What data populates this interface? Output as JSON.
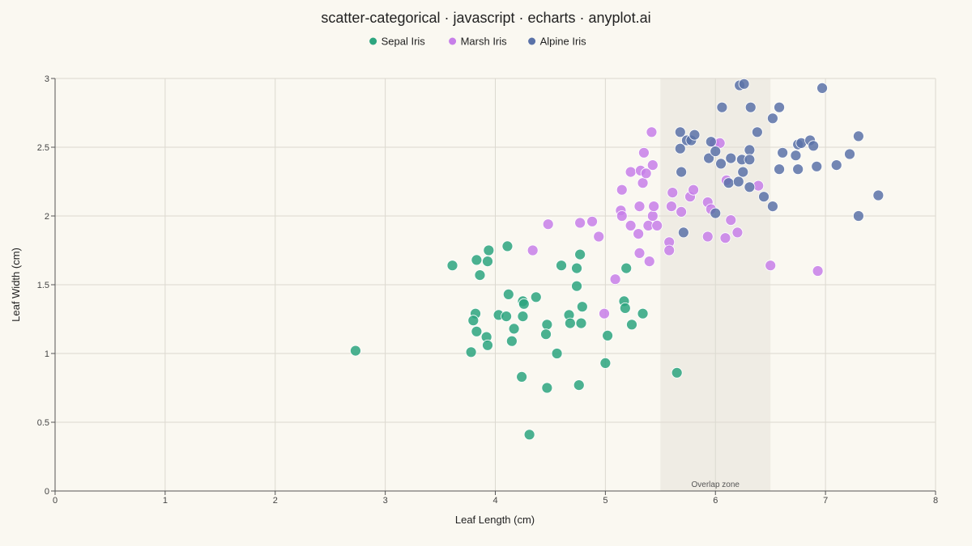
{
  "chart_data": {
    "type": "scatter",
    "title": "scatter-categorical · javascript · echarts · anyplot.ai",
    "xlabel": "Leaf Length (cm)",
    "ylabel": "Leaf Width (cm)",
    "xlim": [
      0,
      8
    ],
    "ylim": [
      0,
      3
    ],
    "xticks": [
      "0",
      "1",
      "2",
      "3",
      "4",
      "5",
      "6",
      "7",
      "8"
    ],
    "yticks": [
      "0",
      "0.5",
      "1",
      "1.5",
      "2",
      "2.5",
      "3"
    ],
    "grid": true,
    "legend_position": "top-center",
    "annotation": {
      "label": "Overlap zone",
      "x_range": [
        5.5,
        6.5
      ]
    },
    "series": [
      {
        "name": "Sepal Iris",
        "color": "#2ca57f",
        "points": [
          [
            2.73,
            1.02
          ],
          [
            3.61,
            1.64
          ],
          [
            3.83,
            1.68
          ],
          [
            3.93,
            1.67
          ],
          [
            3.94,
            1.75
          ],
          [
            4.11,
            1.78
          ],
          [
            3.86,
            1.57
          ],
          [
            4.12,
            1.43
          ],
          [
            3.82,
            1.29
          ],
          [
            3.8,
            1.24
          ],
          [
            4.03,
            1.28
          ],
          [
            4.1,
            1.27
          ],
          [
            4.25,
            1.38
          ],
          [
            4.26,
            1.36
          ],
          [
            4.25,
            1.27
          ],
          [
            4.37,
            1.41
          ],
          [
            3.83,
            1.16
          ],
          [
            3.92,
            1.12
          ],
          [
            4.17,
            1.18
          ],
          [
            3.93,
            1.06
          ],
          [
            3.78,
            1.01
          ],
          [
            4.15,
            1.09
          ],
          [
            4.47,
            1.21
          ],
          [
            4.46,
            1.14
          ],
          [
            4.56,
            1.0
          ],
          [
            4.24,
            0.83
          ],
          [
            4.47,
            0.75
          ],
          [
            4.31,
            0.41
          ],
          [
            4.6,
            1.64
          ],
          [
            4.74,
            1.62
          ],
          [
            4.77,
            1.72
          ],
          [
            4.74,
            1.49
          ],
          [
            4.79,
            1.34
          ],
          [
            4.67,
            1.28
          ],
          [
            4.68,
            1.22
          ],
          [
            4.78,
            1.22
          ],
          [
            4.76,
            0.77
          ],
          [
            5.0,
            0.93
          ],
          [
            5.02,
            1.13
          ],
          [
            5.19,
            1.62
          ],
          [
            5.17,
            1.38
          ],
          [
            5.18,
            1.33
          ],
          [
            5.24,
            1.21
          ],
          [
            5.34,
            1.29
          ],
          [
            5.65,
            0.86
          ]
        ]
      },
      {
        "name": "Marsh Iris",
        "color": "#c77fe9",
        "points": [
          [
            4.34,
            1.75
          ],
          [
            4.48,
            1.94
          ],
          [
            4.77,
            1.95
          ],
          [
            4.88,
            1.96
          ],
          [
            4.94,
            1.85
          ],
          [
            4.99,
            1.29
          ],
          [
            5.09,
            1.54
          ],
          [
            5.14,
            2.04
          ],
          [
            5.15,
            2.0
          ],
          [
            5.15,
            2.19
          ],
          [
            5.23,
            1.93
          ],
          [
            5.23,
            2.32
          ],
          [
            5.3,
            1.87
          ],
          [
            5.31,
            1.73
          ],
          [
            5.31,
            2.07
          ],
          [
            5.32,
            2.33
          ],
          [
            5.34,
            2.24
          ],
          [
            5.35,
            2.46
          ],
          [
            5.37,
            2.31
          ],
          [
            5.39,
            1.93
          ],
          [
            5.4,
            1.67
          ],
          [
            5.42,
            2.61
          ],
          [
            5.43,
            2.37
          ],
          [
            5.43,
            2.0
          ],
          [
            5.44,
            2.07
          ],
          [
            5.47,
            1.93
          ],
          [
            5.58,
            1.81
          ],
          [
            5.58,
            1.75
          ],
          [
            5.6,
            2.07
          ],
          [
            5.61,
            2.17
          ],
          [
            5.69,
            2.03
          ],
          [
            5.77,
            2.14
          ],
          [
            5.8,
            2.19
          ],
          [
            5.93,
            1.85
          ],
          [
            5.93,
            2.1
          ],
          [
            5.96,
            2.05
          ],
          [
            5.99,
            2.53
          ],
          [
            6.04,
            2.53
          ],
          [
            6.09,
            1.84
          ],
          [
            6.1,
            2.26
          ],
          [
            6.14,
            1.97
          ],
          [
            6.2,
            1.88
          ],
          [
            6.39,
            2.22
          ],
          [
            6.5,
            1.64
          ],
          [
            6.93,
            1.6
          ]
        ]
      },
      {
        "name": "Alpine Iris",
        "color": "#5a72a8",
        "points": [
          [
            5.68,
            2.61
          ],
          [
            5.68,
            2.49
          ],
          [
            5.69,
            2.32
          ],
          [
            5.71,
            1.88
          ],
          [
            5.74,
            2.55
          ],
          [
            5.78,
            2.55
          ],
          [
            5.81,
            2.59
          ],
          [
            5.94,
            2.42
          ],
          [
            5.96,
            2.54
          ],
          [
            6.0,
            2.47
          ],
          [
            6.0,
            2.02
          ],
          [
            6.05,
            2.38
          ],
          [
            6.06,
            2.79
          ],
          [
            6.14,
            2.42
          ],
          [
            6.12,
            2.24
          ],
          [
            6.21,
            2.25
          ],
          [
            6.24,
            2.41
          ],
          [
            6.25,
            2.32
          ],
          [
            6.22,
            2.95
          ],
          [
            6.26,
            2.96
          ],
          [
            6.31,
            2.48
          ],
          [
            6.31,
            2.41
          ],
          [
            6.31,
            2.21
          ],
          [
            6.32,
            2.79
          ],
          [
            6.38,
            2.61
          ],
          [
            6.44,
            2.14
          ],
          [
            6.52,
            2.71
          ],
          [
            6.52,
            2.07
          ],
          [
            6.58,
            2.79
          ],
          [
            6.58,
            2.34
          ],
          [
            6.61,
            2.46
          ],
          [
            6.73,
            2.44
          ],
          [
            6.75,
            2.52
          ],
          [
            6.75,
            2.34
          ],
          [
            6.78,
            2.53
          ],
          [
            6.86,
            2.55
          ],
          [
            6.89,
            2.51
          ],
          [
            6.92,
            2.36
          ],
          [
            6.97,
            2.93
          ],
          [
            7.1,
            2.37
          ],
          [
            7.22,
            2.45
          ],
          [
            7.3,
            2.58
          ],
          [
            7.3,
            2.0
          ],
          [
            7.48,
            2.15
          ]
        ]
      }
    ]
  }
}
